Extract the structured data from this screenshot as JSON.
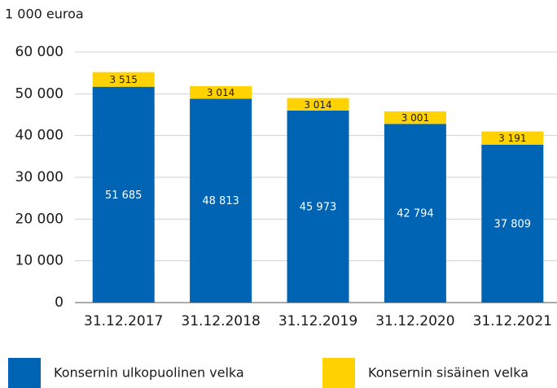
{
  "chart_data": {
    "type": "stacked_bar",
    "y_label": "1 000 euroa",
    "categories": [
      "31.12.2017",
      "31.12.2018",
      "31.12.2019",
      "31.12.2020",
      "31.12.2021"
    ],
    "series": [
      {
        "name": "Konsernin ulkopuolinen velka",
        "color": "#0064b4",
        "values": [
          51685,
          48813,
          45973,
          42794,
          37809
        ],
        "value_labels": [
          "51 685",
          "48 813",
          "45 973",
          "42 794",
          "37 809"
        ]
      },
      {
        "name": "Konsernin sisäinen velka",
        "color": "#ffd200",
        "values": [
          3515,
          3014,
          3014,
          3001,
          3191
        ],
        "value_labels": [
          "3 515",
          "3 014",
          "3 014",
          "3 001",
          "3 191"
        ]
      }
    ],
    "ylim": [
      0,
      60000
    ],
    "yticks": [
      {
        "value": 0,
        "label": "0"
      },
      {
        "value": 10000,
        "label": "10 000"
      },
      {
        "value": 20000,
        "label": "20 000"
      },
      {
        "value": 30000,
        "label": "30 000"
      },
      {
        "value": 40000,
        "label": "40 000"
      },
      {
        "value": 50000,
        "label": "50 000"
      },
      {
        "value": 60000,
        "label": "60 000"
      }
    ],
    "grid": true
  }
}
